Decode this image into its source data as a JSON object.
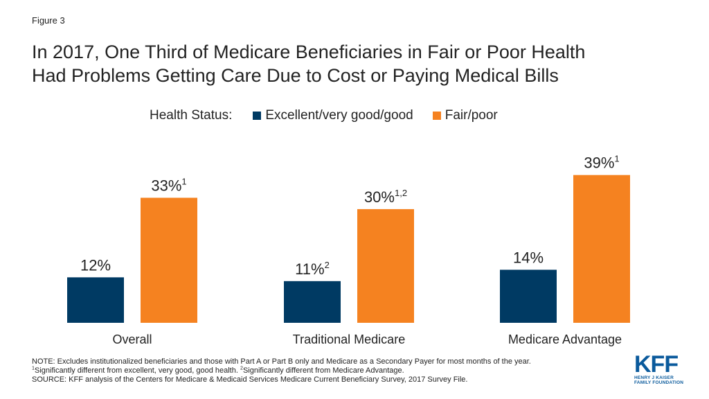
{
  "figure_label": "Figure 3",
  "title_lines": [
    "In 2017, One Third of Medicare Beneficiaries in Fair or Poor Health",
    "Had Problems Getting Care Due to Cost or Paying Medical Bills"
  ],
  "legend": {
    "label": "Health Status:",
    "items": [
      {
        "name": "Excellent/very good/good",
        "color": "#003a63"
      },
      {
        "name": "Fair/poor",
        "color": "#f58220"
      }
    ]
  },
  "chart_data": {
    "type": "bar",
    "title": "In 2017, One Third of Medicare Beneficiaries in Fair or Poor Health Had Problems Getting Care Due to Cost or Paying Medical Bills",
    "categories": [
      "Overall",
      "Traditional Medicare",
      "Medicare Advantage"
    ],
    "series": [
      {
        "name": "Excellent/very good/good",
        "color": "#003a63",
        "values": [
          12,
          11,
          14
        ],
        "labels": [
          "12%",
          "11%",
          "14%"
        ],
        "superscripts": [
          "",
          "2",
          ""
        ]
      },
      {
        "name": "Fair/poor",
        "color": "#f58220",
        "values": [
          33,
          30,
          39
        ],
        "labels": [
          "33%",
          "30%",
          "39%"
        ],
        "superscripts": [
          "1",
          "1,2",
          "1"
        ]
      }
    ],
    "xlabel": "",
    "ylabel": "",
    "ylim": [
      0,
      40
    ],
    "grid": false,
    "legend_position": "top"
  },
  "notes": {
    "note": "NOTE: Excludes institutionalized beneficiaries and those with Part A or Part B only and Medicare as a Secondary Payer for most months of the year.",
    "footnote1_sup": "1",
    "footnote1_text": "Significantly different from excellent, very good, good health.",
    "footnote2_sup": "2",
    "footnote2_text": "Significantly different from Medicare Advantage.",
    "source": "SOURCE: KFF analysis of the Centers for Medicare & Medicaid Services Medicare Current Beneficiary Survey, 2017 Survey File."
  },
  "logo": {
    "mark": "KFF",
    "line1": "HENRY J KAISER",
    "line2": "FAMILY FOUNDATION"
  }
}
